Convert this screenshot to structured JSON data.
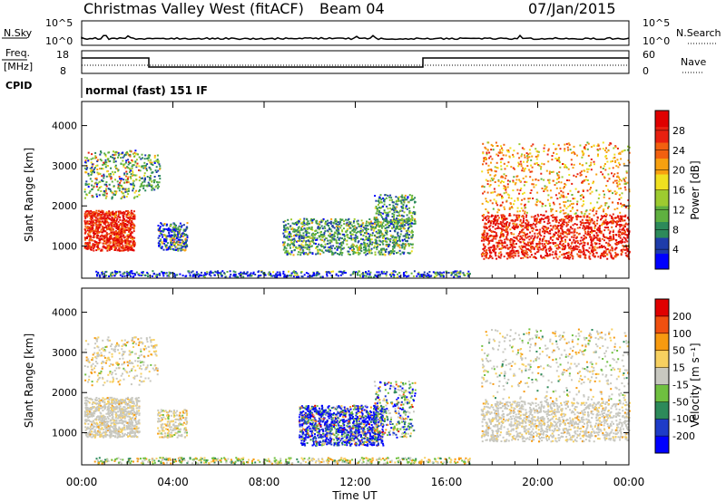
{
  "header": {
    "station": "Christmas Valley West (fitACF)",
    "beam": "Beam 04",
    "date": "07/Jan/2015"
  },
  "top_panels": {
    "nsky_label": "N.Sky",
    "nsky_ticks": [
      "10^5",
      "10^0"
    ],
    "nsearch_label": "N.Search",
    "freq_label_1": "Freq.",
    "freq_label_2": "[MHz]",
    "freq_ticks": [
      "18",
      "8"
    ],
    "nave_label": "Nave",
    "nave_ticks": [
      "60",
      "0"
    ],
    "nsearch_ticks": [
      "10^5",
      "10^0"
    ],
    "cpid_label": "CPID",
    "cpid_text": "normal (fast) 151 IF"
  },
  "chart_data": [
    {
      "type": "heatmap",
      "name": "power",
      "ylabel": "Slant Range [km]",
      "y_ticks": [
        1000,
        2000,
        3000,
        4000
      ],
      "ylim": [
        200,
        4600
      ],
      "colorbar_label": "Power [dB]",
      "colorbar_ticks": [
        "28",
        "24",
        "20",
        "16",
        "12",
        "8",
        "4"
      ],
      "colors": [
        "#0000ff",
        "#1e3caa",
        "#2d8a5a",
        "#5fb040",
        "#9dcb30",
        "#f0e020",
        "#f7a010",
        "#f26010",
        "#e82010",
        "#e00000"
      ]
    },
    {
      "type": "heatmap",
      "name": "velocity",
      "ylabel": "Slant Range [km]",
      "y_ticks": [
        1000,
        2000,
        3000,
        4000
      ],
      "ylim": [
        200,
        4600
      ],
      "colorbar_label": "Velocity [m s⁻¹]",
      "colorbar_ticks": [
        "200",
        "100",
        "50",
        "15",
        "-15",
        "-50",
        "-100",
        "-200"
      ],
      "colors": [
        "#0000ff",
        "#1e3cc8",
        "#2d8a5a",
        "#6fc040",
        "#c8c8c0",
        "#f7d060",
        "#f79a10",
        "#f05010",
        "#e00000"
      ]
    }
  ],
  "x_axis": {
    "ticks": [
      "00:00",
      "04:00",
      "08:00",
      "12:00",
      "16:00",
      "20:00",
      "00:00"
    ],
    "label": "Time UT"
  }
}
